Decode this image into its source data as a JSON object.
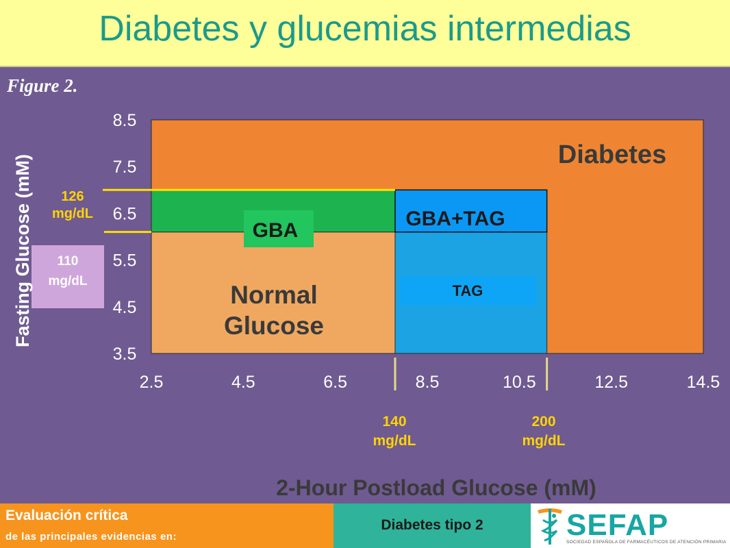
{
  "header": {
    "title": "Diabetes y glucemias intermedias"
  },
  "chart_data": {
    "type": "region",
    "figure_label": "Figure 2.",
    "xlabel": "2-Hour Postload Glucose (mM)",
    "ylabel": "Fasting Glucose (mM)",
    "xlim": [
      2.5,
      14.5
    ],
    "ylim": [
      3.5,
      8.5
    ],
    "x_ticks": [
      "2.5",
      "4.5",
      "6.5",
      "8.5",
      "10.5",
      "12.5",
      "14.5"
    ],
    "y_ticks": [
      "3.5",
      "4.5",
      "5.5",
      "6.5",
      "7.5",
      "8.5"
    ],
    "thresholds": {
      "fasting_126": {
        "value": 7.0,
        "label_line1": "126",
        "label_line2": "mg/dL"
      },
      "fasting_110": {
        "value": 6.1,
        "label_line1": "110",
        "label_line2": "mg/dL"
      },
      "postload_140": {
        "value": 7.8,
        "label_line1": "140",
        "label_line2": "mg/dL"
      },
      "postload_200": {
        "value": 11.1,
        "label_line1": "200",
        "label_line2": "mg/dL"
      }
    },
    "regions": [
      {
        "label": "Diabetes",
        "x": [
          2.5,
          14.5
        ],
        "y": [
          3.5,
          8.5
        ],
        "color": "#ef8533"
      },
      {
        "label_line1": "Normal",
        "label_line2": "Glucose",
        "x": [
          2.5,
          7.8
        ],
        "y": [
          3.5,
          6.1
        ],
        "color": "#f0a860"
      },
      {
        "label": "GBA",
        "x": [
          2.5,
          7.8
        ],
        "y": [
          6.1,
          7.0
        ],
        "color": "#1db34f"
      },
      {
        "label": "TAG",
        "x": [
          7.8,
          11.1
        ],
        "y": [
          3.5,
          6.1
        ],
        "color": "#1ca3e3"
      },
      {
        "label": "GBA+TAG",
        "x": [
          7.8,
          11.1
        ],
        "y": [
          6.1,
          7.0
        ],
        "color": "#0b98f5"
      }
    ]
  },
  "footer": {
    "left_line1": "Evaluación crítica",
    "left_line2": "de las principales evidencias en:",
    "middle": "Diabetes tipo 2",
    "logo_text": "SEFAP",
    "logo_subtext": "SOCIEDAD ESPAÑOLA DE FARMACÉUTICOS DE ATENCIÓN PRIMARIA"
  }
}
